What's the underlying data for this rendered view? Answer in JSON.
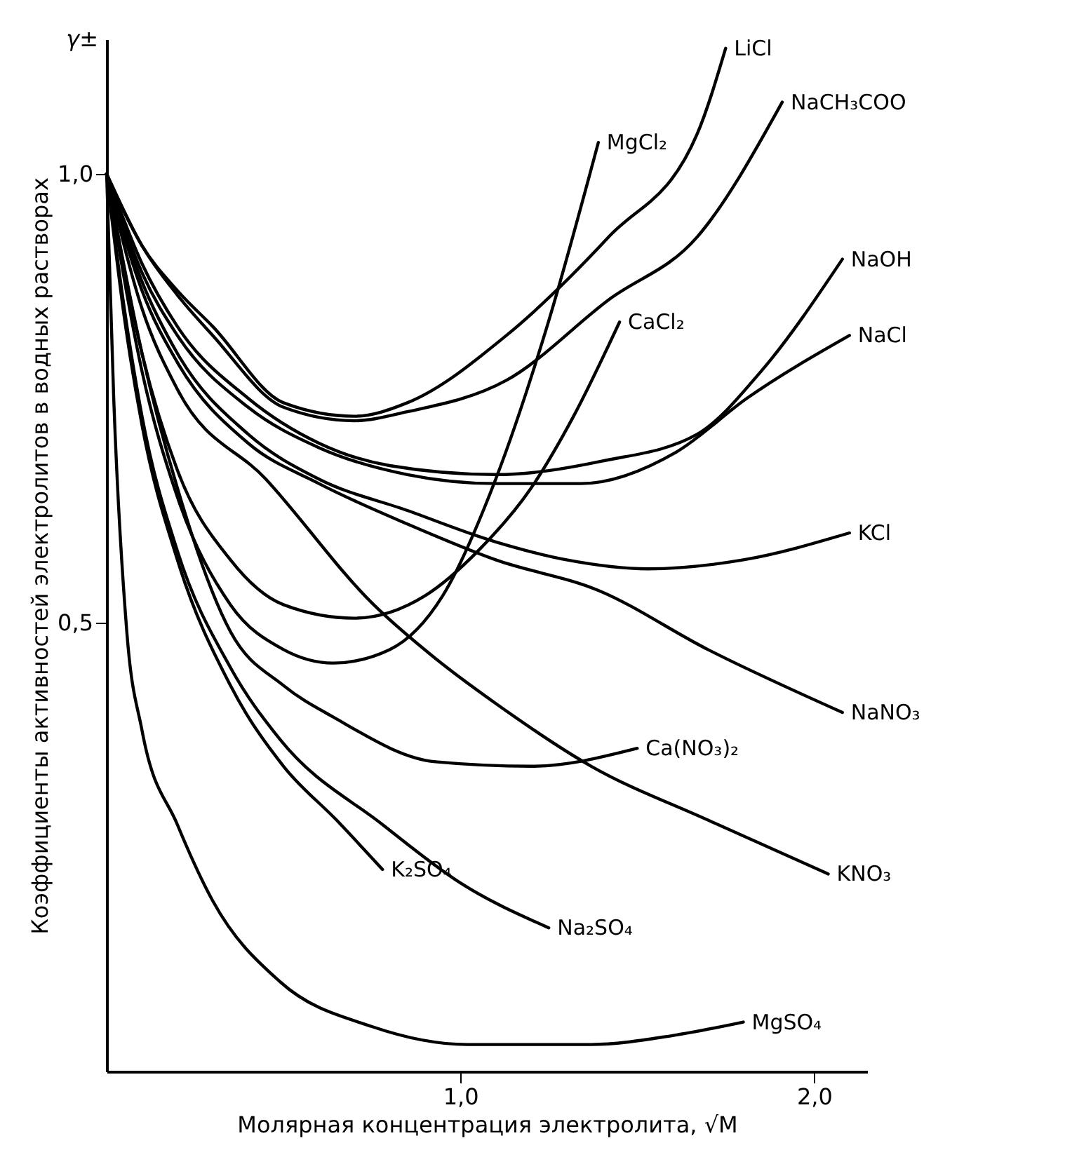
{
  "chart_data": {
    "type": "line",
    "xlabel": "Молярная концентрация электролита, √M",
    "ylabel": "Коэффициенты активностей электролитов в водных растворах",
    "annotations": [
      "γ±"
    ],
    "xlim": [
      0,
      2.15
    ],
    "ylim": [
      0,
      1.15
    ],
    "xticks": [
      {
        "value": 1,
        "label": "1,0"
      },
      {
        "value": 2,
        "label": "2,0"
      }
    ],
    "yticks": [
      {
        "value": 0.5,
        "label": "0,5"
      },
      {
        "value": 1,
        "label": "1,0"
      }
    ],
    "grid": false,
    "legend": false,
    "marker": "none",
    "line_style": "solid",
    "series": [
      {
        "name": "MgCl₂",
        "color": "#000000",
        "x": [
          0,
          0.1,
          0.2,
          0.35,
          0.5,
          0.64,
          0.8,
          0.95,
          1.1,
          1.245,
          1.39
        ],
        "values": [
          1,
          0.78,
          0.64,
          0.52,
          0.47,
          0.455,
          0.47,
          0.53,
          0.66,
          0.83,
          1.035
        ]
      },
      {
        "name": "LiCl",
        "color": "#000000",
        "x": [
          0,
          0.1,
          0.2,
          0.3,
          0.5,
          0.7,
          0.85,
          1.13,
          1.42,
          1.67,
          1.75
        ],
        "values": [
          1,
          0.92,
          0.87,
          0.83,
          0.745,
          0.73,
          0.745,
          0.82,
          0.93,
          1.045,
          1.14
        ]
      },
      {
        "name": "NaCH₃COO",
        "color": "#000000",
        "x": [
          0,
          0.1,
          0.2,
          0.3,
          0.5,
          0.7,
          0.85,
          1.13,
          1.42,
          1.67,
          1.91
        ],
        "values": [
          1,
          0.92,
          0.865,
          0.82,
          0.74,
          0.725,
          0.735,
          0.77,
          0.86,
          0.93,
          1.08
        ]
      },
      {
        "name": "CaCl₂",
        "color": "#000000",
        "x": [
          0,
          0.1,
          0.2,
          0.35,
          0.5,
          0.7,
          0.9,
          1.05,
          1.2,
          1.32,
          1.45
        ],
        "values": [
          1,
          0.8,
          0.67,
          0.57,
          0.52,
          0.505,
          0.53,
          0.58,
          0.65,
          0.73,
          0.835
        ]
      },
      {
        "name": "NaOH",
        "color": "#000000",
        "x": [
          0,
          0.1,
          0.2,
          0.4,
          0.6,
          0.8,
          1.1,
          1.4,
          1.67,
          1.85,
          2.08
        ],
        "values": [
          1,
          0.9,
          0.83,
          0.75,
          0.7,
          0.675,
          0.665,
          0.68,
          0.71,
          0.78,
          0.905
        ]
      },
      {
        "name": "NaCl",
        "color": "#000000",
        "x": [
          0,
          0.1,
          0.2,
          0.4,
          0.6,
          0.85,
          1.1,
          1.34,
          1.61,
          1.81,
          2.1
        ],
        "values": [
          1,
          0.89,
          0.82,
          0.74,
          0.695,
          0.665,
          0.655,
          0.655,
          0.69,
          0.75,
          0.82
        ]
      },
      {
        "name": "KCl",
        "color": "#000000",
        "x": [
          0,
          0.1,
          0.2,
          0.4,
          0.6,
          0.85,
          1.1,
          1.3,
          1.53,
          1.8,
          2.1
        ],
        "values": [
          1,
          0.88,
          0.8,
          0.71,
          0.66,
          0.625,
          0.59,
          0.57,
          0.56,
          0.57,
          0.6
        ]
      },
      {
        "name": "NaNO₃",
        "color": "#000000",
        "x": [
          0,
          0.1,
          0.2,
          0.4,
          0.6,
          0.85,
          1.1,
          1.39,
          1.7,
          2.08
        ],
        "values": [
          1,
          0.87,
          0.79,
          0.7,
          0.655,
          0.61,
          0.57,
          0.536,
          0.47,
          0.4
        ]
      },
      {
        "name": "Ca(NO₃)₂",
        "color": "#000000",
        "x": [
          0,
          0.1,
          0.2,
          0.35,
          0.5,
          0.64,
          0.93,
          1.2,
          1.5
        ],
        "values": [
          1,
          0.8,
          0.65,
          0.49,
          0.43,
          0.395,
          0.345,
          0.34,
          0.36
        ]
      },
      {
        "name": "KNO₃",
        "color": "#000000",
        "x": [
          0,
          0.1,
          0.2,
          0.45,
          0.755,
          0.93,
          1.1,
          1.37,
          1.7,
          2.04
        ],
        "values": [
          1,
          0.85,
          0.76,
          0.66,
          0.52,
          0.46,
          0.41,
          0.34,
          0.28,
          0.22
        ]
      },
      {
        "name": "Na₂SO₄",
        "color": "#000000",
        "x": [
          0,
          0.05,
          0.1,
          0.2,
          0.35,
          0.49,
          0.78,
          1,
          1.25
        ],
        "values": [
          1,
          0.85,
          0.73,
          0.58,
          0.45,
          0.37,
          0.275,
          0.21,
          0.16
        ]
      },
      {
        "name": "K₂SO₄",
        "color": "#000000",
        "x": [
          0,
          0.05,
          0.1,
          0.2,
          0.35,
          0.5,
          0.65,
          0.78
        ],
        "values": [
          1,
          0.84,
          0.72,
          0.57,
          0.43,
          0.34,
          0.28,
          0.225
        ]
      },
      {
        "name": "MgSO₄",
        "color": "#000000",
        "x": [
          0,
          0.02,
          0.057,
          0.1,
          0.2,
          0.3,
          0.49,
          0.75,
          1.02,
          1.37,
          1.6,
          1.8
        ],
        "values": [
          1,
          0.75,
          0.49,
          0.38,
          0.275,
          0.19,
          0.1,
          0.05,
          0.03,
          0.03,
          0.04,
          0.055
        ]
      }
    ]
  }
}
